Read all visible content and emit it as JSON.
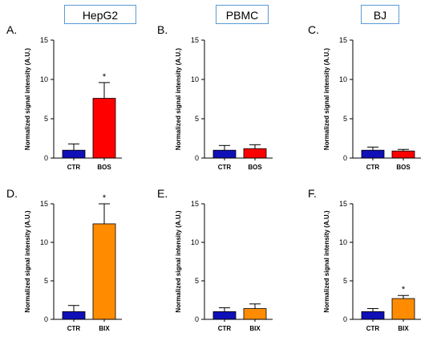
{
  "column_headers": [
    "HepG2",
    "PBMC",
    "BJ"
  ],
  "colors": {
    "ctr": "#1010b8",
    "bos": "#ff0000",
    "bix": "#ff8c00",
    "header_border": "#5b9bd5"
  },
  "chart_data": [
    {
      "panel": "A.",
      "type": "bar",
      "ylabel": "Normalized signal intensity (A.U.)",
      "ylim": [
        0,
        15
      ],
      "yticks": [
        "0",
        "5",
        "10",
        "15"
      ],
      "categories": [
        "CTR",
        "BOS"
      ],
      "values": [
        1.0,
        7.6
      ],
      "errors": [
        0.8,
        2.0
      ],
      "significance": [
        "",
        "*"
      ]
    },
    {
      "panel": "B.",
      "type": "bar",
      "ylabel": "Normalized signal intensity (A.U.)",
      "ylim": [
        0,
        15
      ],
      "yticks": [
        "0",
        "5",
        "10",
        "15"
      ],
      "categories": [
        "CTR",
        "BOS"
      ],
      "values": [
        1.0,
        1.2
      ],
      "errors": [
        0.6,
        0.5
      ],
      "significance": [
        "",
        ""
      ]
    },
    {
      "panel": "C.",
      "type": "bar",
      "ylabel": "Normalized signal intensity (A.U.)",
      "ylim": [
        0,
        15
      ],
      "yticks": [
        "0",
        "5",
        "10",
        "15"
      ],
      "categories": [
        "CTR",
        "BOS"
      ],
      "values": [
        1.0,
        0.9
      ],
      "errors": [
        0.4,
        0.2
      ],
      "significance": [
        "",
        ""
      ]
    },
    {
      "panel": "D.",
      "type": "bar",
      "ylabel": "Normalized signal intensity (A.U.)",
      "ylim": [
        0,
        15
      ],
      "yticks": [
        "0",
        "5",
        "10",
        "15"
      ],
      "categories": [
        "CTR",
        "BIX"
      ],
      "values": [
        1.0,
        12.4
      ],
      "errors": [
        0.8,
        2.6
      ],
      "significance": [
        "",
        "*"
      ]
    },
    {
      "panel": "E.",
      "type": "bar",
      "ylabel": "Normalized signal intensity (A.U.)",
      "ylim": [
        0,
        15
      ],
      "yticks": [
        "0",
        "5",
        "10",
        "15"
      ],
      "categories": [
        "CTR",
        "BIX"
      ],
      "values": [
        1.0,
        1.4
      ],
      "errors": [
        0.5,
        0.6
      ],
      "significance": [
        "",
        ""
      ]
    },
    {
      "panel": "F.",
      "type": "bar",
      "ylabel": "Normalized signal intensity (A.U.)",
      "ylim": [
        0,
        15
      ],
      "yticks": [
        "0",
        "5",
        "10",
        "15"
      ],
      "categories": [
        "CTR",
        "BIX"
      ],
      "values": [
        1.0,
        2.7
      ],
      "errors": [
        0.4,
        0.4
      ],
      "significance": [
        "",
        "*"
      ]
    }
  ]
}
